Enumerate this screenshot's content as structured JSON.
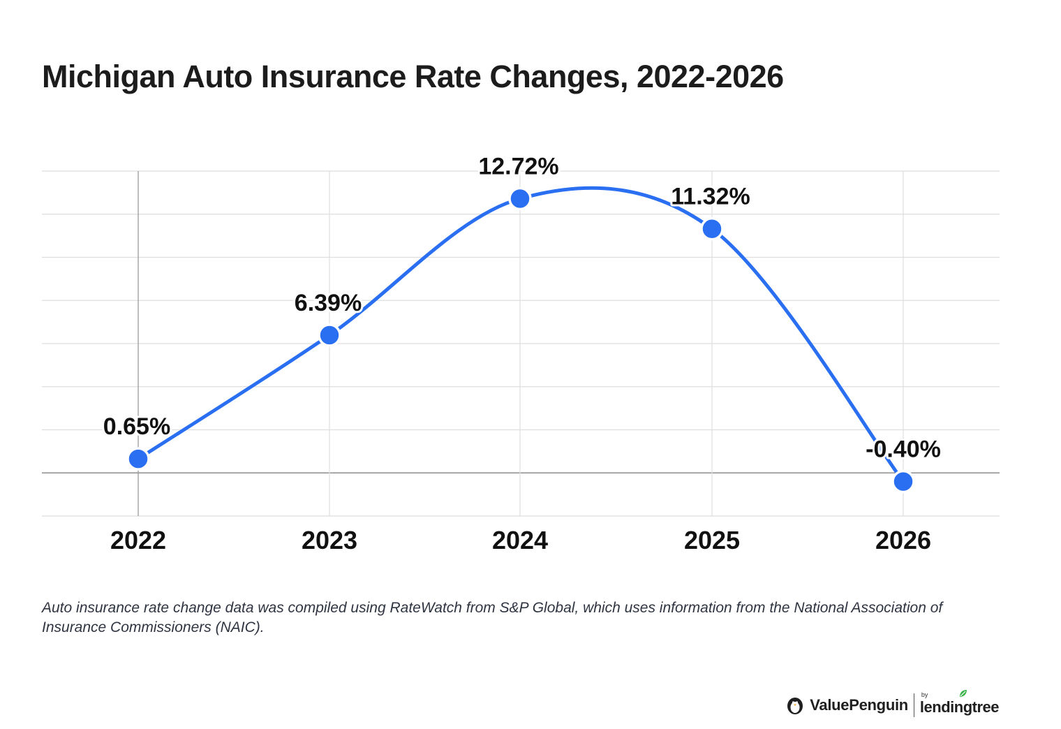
{
  "title": "Michigan Auto Insurance Rate Changes, 2022-2026",
  "footnote": "Auto insurance rate change data was compiled using RateWatch from S&P Global, which uses information from the National Association of Insurance Commissioners (NAIC).",
  "brand": {
    "valuepenguin": "ValuePenguin",
    "by": "by",
    "lendingtree": "lendingtree",
    "icons": [
      "penguin-logo-icon",
      "leaf-logo-icon"
    ]
  },
  "colors": {
    "line": "#2a6ff2",
    "marker": "#2a6ff2",
    "grid": "#dedede",
    "zero_line": "#8c8c8c",
    "label": "#111111",
    "leaf": "#3bb54a"
  },
  "chart_data": {
    "type": "line",
    "categories": [
      "2022",
      "2023",
      "2024",
      "2025",
      "2026"
    ],
    "series": [
      {
        "values": [
          0.65,
          6.39,
          12.72,
          11.32,
          -0.4
        ]
      }
    ],
    "data_labels": [
      "0.65%",
      "6.39%",
      "12.72%",
      "11.32%",
      "-0.40%"
    ],
    "ylim": [
      -2.0,
      14.0
    ],
    "y_gridlines": [
      -2.0,
      0.0,
      2.0,
      4.0,
      6.0,
      8.0,
      10.0,
      12.0,
      14.0
    ],
    "y_tick_labels_shown": false,
    "grid": true,
    "smooth": true,
    "legend": "none",
    "xlabel": "",
    "ylabel": ""
  }
}
